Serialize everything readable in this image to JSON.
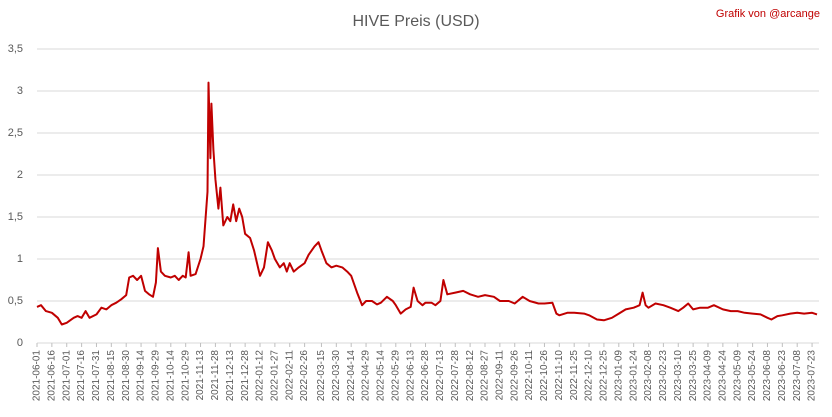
{
  "chart_data": {
    "type": "line",
    "title": "HIVE Preis (USD)",
    "annotation": "Grafik von @arcange",
    "color": "#c00000",
    "grid": true,
    "ylim": [
      0,
      3.5
    ],
    "yticks": [
      0,
      {
        "value": 0.5,
        "label": "0,5"
      },
      1,
      {
        "value": 1.5,
        "label": "1,5"
      },
      2,
      {
        "value": 2.5,
        "label": "2,5"
      },
      3,
      {
        "value": 3.5,
        "label": "3,5"
      }
    ],
    "xlim": [
      "2021-06-01",
      "2023-07-30"
    ],
    "xticks": [
      "2021-06-01",
      "2021-06-16",
      "2021-07-01",
      "2021-07-16",
      "2021-07-31",
      "2021-08-15",
      "2021-08-30",
      "2021-09-14",
      "2021-09-29",
      "2021-10-14",
      "2021-10-29",
      "2021-11-13",
      "2021-11-28",
      "2021-12-13",
      "2021-12-28",
      "2022-01-12",
      "2022-01-27",
      "2022-02-11",
      "2022-02-26",
      "2022-03-15",
      "2022-03-30",
      "2022-04-14",
      "2022-04-29",
      "2022-05-14",
      "2022-05-29",
      "2022-06-13",
      "2022-06-28",
      "2022-07-13",
      "2022-07-28",
      "2022-08-12",
      "2022-08-27",
      "2022-09-11",
      "2022-09-26",
      "2022-10-11",
      "2022-10-26",
      "2022-11-10",
      "2022-11-25",
      "2022-12-10",
      "2022-12-25",
      "2023-01-09",
      "2023-01-24",
      "2023-02-08",
      "2023-02-23",
      "2023-03-10",
      "2023-03-25",
      "2023-04-09",
      "2023-04-24",
      "2023-05-09",
      "2023-05-24",
      "2023-06-08",
      "2023-06-23",
      "2023-07-08",
      "2023-07-23"
    ],
    "x": [
      "2021-06-01",
      "2021-06-05",
      "2021-06-10",
      "2021-06-16",
      "2021-06-22",
      "2021-06-26",
      "2021-07-01",
      "2021-07-08",
      "2021-07-12",
      "2021-07-16",
      "2021-07-20",
      "2021-07-24",
      "2021-07-31",
      "2021-08-05",
      "2021-08-10",
      "2021-08-15",
      "2021-08-20",
      "2021-08-25",
      "2021-08-30",
      "2021-09-02",
      "2021-09-06",
      "2021-09-10",
      "2021-09-14",
      "2021-09-18",
      "2021-09-22",
      "2021-09-26",
      "2021-09-29",
      "2021-10-01",
      "2021-10-04",
      "2021-10-08",
      "2021-10-14",
      "2021-10-18",
      "2021-10-22",
      "2021-10-26",
      "2021-10-29",
      "2021-11-01",
      "2021-11-03",
      "2021-11-08",
      "2021-11-13",
      "2021-11-16",
      "2021-11-20",
      "2021-11-21",
      "2021-11-23",
      "2021-11-24",
      "2021-11-26",
      "2021-11-28",
      "2021-12-01",
      "2021-12-03",
      "2021-12-06",
      "2021-12-10",
      "2021-12-13",
      "2021-12-16",
      "2021-12-19",
      "2021-12-22",
      "2021-12-25",
      "2021-12-28",
      "2022-01-02",
      "2022-01-06",
      "2022-01-10",
      "2022-01-12",
      "2022-01-16",
      "2022-01-20",
      "2022-01-24",
      "2022-01-27",
      "2022-02-01",
      "2022-02-05",
      "2022-02-08",
      "2022-02-11",
      "2022-02-15",
      "2022-02-20",
      "2022-02-26",
      "2022-03-02",
      "2022-03-08",
      "2022-03-12",
      "2022-03-15",
      "2022-03-20",
      "2022-03-25",
      "2022-03-30",
      "2022-04-05",
      "2022-04-10",
      "2022-04-14",
      "2022-04-20",
      "2022-04-25",
      "2022-04-29",
      "2022-05-05",
      "2022-05-10",
      "2022-05-14",
      "2022-05-20",
      "2022-05-26",
      "2022-05-29",
      "2022-06-03",
      "2022-06-08",
      "2022-06-13",
      "2022-06-16",
      "2022-06-20",
      "2022-06-25",
      "2022-06-28",
      "2022-07-04",
      "2022-07-08",
      "2022-07-13",
      "2022-07-16",
      "2022-07-20",
      "2022-07-28",
      "2022-08-05",
      "2022-08-12",
      "2022-08-20",
      "2022-08-27",
      "2022-09-05",
      "2022-09-11",
      "2022-09-20",
      "2022-09-26",
      "2022-10-04",
      "2022-10-11",
      "2022-10-20",
      "2022-10-26",
      "2022-11-03",
      "2022-11-07",
      "2022-11-10",
      "2022-11-18",
      "2022-11-25",
      "2022-12-05",
      "2022-12-10",
      "2022-12-18",
      "2022-12-25",
      "2023-01-02",
      "2023-01-09",
      "2023-01-16",
      "2023-01-24",
      "2023-01-30",
      "2023-02-02",
      "2023-02-05",
      "2023-02-08",
      "2023-02-15",
      "2023-02-23",
      "2023-03-02",
      "2023-03-10",
      "2023-03-15",
      "2023-03-20",
      "2023-03-25",
      "2023-04-01",
      "2023-04-09",
      "2023-04-15",
      "2023-04-24",
      "2023-05-02",
      "2023-05-09",
      "2023-05-16",
      "2023-05-24",
      "2023-06-01",
      "2023-06-08",
      "2023-06-12",
      "2023-06-18",
      "2023-06-23",
      "2023-07-01",
      "2023-07-08",
      "2023-07-15",
      "2023-07-23",
      "2023-07-28"
    ],
    "values": [
      0.43,
      0.45,
      0.38,
      0.36,
      0.3,
      0.22,
      0.24,
      0.3,
      0.32,
      0.3,
      0.38,
      0.3,
      0.34,
      0.42,
      0.4,
      0.45,
      0.48,
      0.52,
      0.57,
      0.78,
      0.8,
      0.75,
      0.8,
      0.62,
      0.58,
      0.55,
      0.72,
      1.13,
      0.85,
      0.8,
      0.78,
      0.8,
      0.75,
      0.8,
      0.78,
      1.08,
      0.8,
      0.82,
      1.0,
      1.15,
      1.8,
      3.1,
      2.2,
      2.85,
      2.3,
      1.95,
      1.6,
      1.85,
      1.4,
      1.5,
      1.45,
      1.65,
      1.45,
      1.6,
      1.5,
      1.3,
      1.25,
      1.1,
      0.9,
      0.8,
      0.9,
      1.2,
      1.1,
      1.0,
      0.9,
      0.95,
      0.85,
      0.95,
      0.85,
      0.9,
      0.95,
      1.05,
      1.15,
      1.2,
      1.1,
      0.95,
      0.9,
      0.92,
      0.9,
      0.85,
      0.8,
      0.6,
      0.45,
      0.5,
      0.5,
      0.46,
      0.48,
      0.55,
      0.5,
      0.45,
      0.35,
      0.4,
      0.43,
      0.66,
      0.5,
      0.45,
      0.48,
      0.48,
      0.45,
      0.5,
      0.75,
      0.58,
      0.6,
      0.62,
      0.58,
      0.55,
      0.57,
      0.55,
      0.5,
      0.5,
      0.47,
      0.55,
      0.5,
      0.47,
      0.47,
      0.48,
      0.35,
      0.33,
      0.36,
      0.36,
      0.35,
      0.33,
      0.28,
      0.27,
      0.3,
      0.35,
      0.4,
      0.42,
      0.45,
      0.6,
      0.45,
      0.42,
      0.47,
      0.45,
      0.42,
      0.38,
      0.42,
      0.47,
      0.4,
      0.42,
      0.42,
      0.45,
      0.4,
      0.38,
      0.38,
      0.36,
      0.35,
      0.34,
      0.3,
      0.28,
      0.32,
      0.33,
      0.35,
      0.36,
      0.35,
      0.36,
      0.34
    ]
  }
}
